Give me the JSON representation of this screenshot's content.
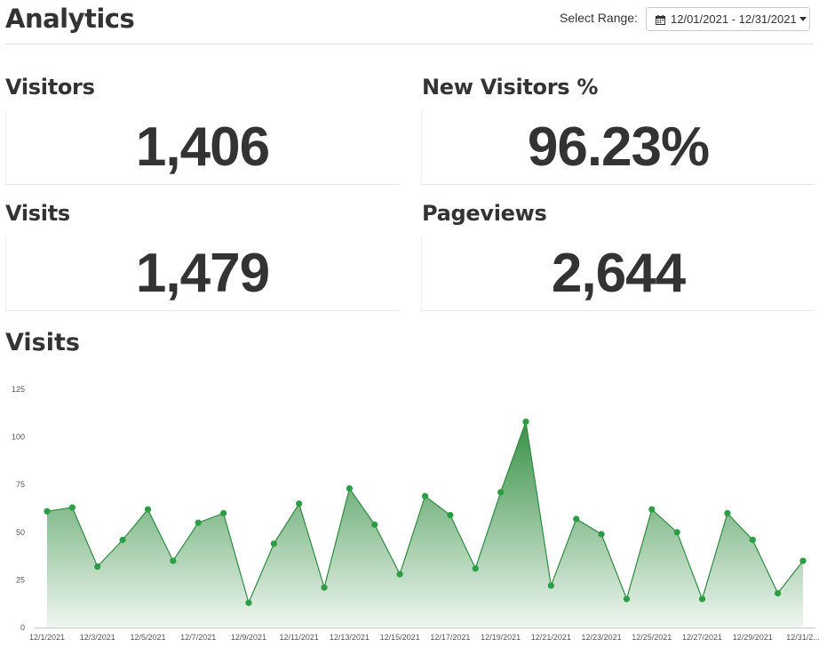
{
  "header": {
    "title": "Analytics",
    "range_label": "Select Range:",
    "range_value": "12/01/2021 - 12/31/2021"
  },
  "stats": {
    "visitors": {
      "label": "Visitors",
      "value": "1,406"
    },
    "new_visitors": {
      "label": "New Visitors %",
      "value": "96.23%"
    },
    "visits": {
      "label": "Visits",
      "value": "1,479"
    },
    "pageviews": {
      "label": "Pageviews",
      "value": "2,644"
    }
  },
  "chart_section_title": "Visits",
  "icons": {
    "range_icon": "calendar-icon",
    "dropdown_icon": "caret-down-icon"
  },
  "colors": {
    "line": "#2e8b3e",
    "fill_top": "#2e8b3e",
    "point": "#2a9d45"
  },
  "chart_data": {
    "type": "area",
    "title": "",
    "xlabel": "",
    "ylabel": "",
    "ylim": [
      0,
      125
    ],
    "y_ticks": [
      "0",
      "25",
      "50",
      "75",
      "100",
      "125"
    ],
    "x": [
      "12/1/2021",
      "12/2/2021",
      "12/3/2021",
      "12/4/2021",
      "12/5/2021",
      "12/6/2021",
      "12/7/2021",
      "12/8/2021",
      "12/9/2021",
      "12/10/2021",
      "12/11/2021",
      "12/12/2021",
      "12/13/2021",
      "12/14/2021",
      "12/15/2021",
      "12/16/2021",
      "12/17/2021",
      "12/18/2021",
      "12/19/2021",
      "12/20/2021",
      "12/21/2021",
      "12/22/2021",
      "12/23/2021",
      "12/24/2021",
      "12/25/2021",
      "12/26/2021",
      "12/27/2021",
      "12/28/2021",
      "12/29/2021",
      "12/30/2021",
      "12/31/2021"
    ],
    "x_tick_labels": [
      "12/1/2021",
      "12/3/2021",
      "12/5/2021",
      "12/7/2021",
      "12/9/2021",
      "12/11/2021",
      "12/13/2021",
      "12/15/2021",
      "12/17/2021",
      "12/19/2021",
      "12/21/2021",
      "12/23/2021",
      "12/25/2021",
      "12/27/2021",
      "12/29/2021",
      "12/31/2..."
    ],
    "series": [
      {
        "values": [
          61,
          63,
          32,
          46,
          62,
          35,
          55,
          60,
          13,
          44,
          65,
          21,
          73,
          54,
          28,
          69,
          59,
          31,
          71,
          108,
          22,
          57,
          49,
          15,
          62,
          50,
          15,
          60,
          46,
          18,
          35
        ]
      }
    ],
    "grid": false,
    "legend": "none"
  }
}
